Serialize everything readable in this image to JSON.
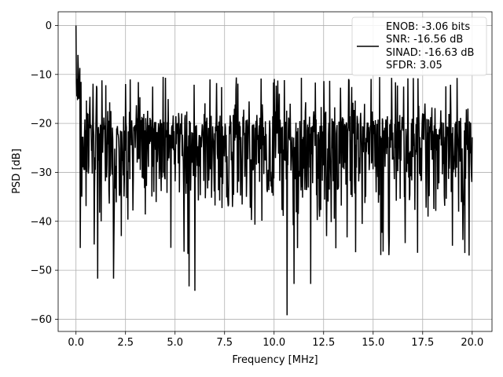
{
  "chart_data": {
    "type": "line",
    "title": "",
    "xlabel": "Frequency [MHz]",
    "ylabel": "PSD [dB]",
    "xlim": [
      -0.9,
      21.0
    ],
    "ylim": [
      -62.5,
      2.8
    ],
    "grid": true,
    "legend_position": "top-right",
    "x_ticks": [
      {
        "value": 0.0,
        "label": "0.0"
      },
      {
        "value": 2.5,
        "label": "2.5"
      },
      {
        "value": 5.0,
        "label": "5.0"
      },
      {
        "value": 7.5,
        "label": "7.5"
      },
      {
        "value": 10.0,
        "label": "10.0"
      },
      {
        "value": 12.5,
        "label": "12.5"
      },
      {
        "value": 15.0,
        "label": "15.0"
      },
      {
        "value": 17.5,
        "label": "17.5"
      },
      {
        "value": 20.0,
        "label": "20.0"
      }
    ],
    "y_ticks": [
      {
        "value": 0,
        "label": "0"
      },
      {
        "value": -10,
        "label": "−10"
      },
      {
        "value": -20,
        "label": "−20"
      },
      {
        "value": -30,
        "label": "−30"
      },
      {
        "value": -40,
        "label": "−40"
      },
      {
        "value": -50,
        "label": "−50"
      },
      {
        "value": -60,
        "label": "−60"
      }
    ],
    "series": [
      {
        "color": "#000000",
        "x_range": [
          0.0,
          20.0
        ],
        "n_points": 1024,
        "noise_floor_db": -23,
        "noise_spread_db": [
          -47,
          -13
        ],
        "peaks": [
          {
            "x": 0.0,
            "y": 0.0
          },
          {
            "x": 0.1,
            "y": -6.0
          },
          {
            "x": 1.1,
            "y": -51.7
          },
          {
            "x": 1.9,
            "y": -51.7
          },
          {
            "x": 4.4,
            "y": -10.5
          },
          {
            "x": 5.7,
            "y": -53.3
          },
          {
            "x": 6.0,
            "y": -54.2
          },
          {
            "x": 10.65,
            "y": -59.2
          },
          {
            "x": 11.0,
            "y": -52.8
          },
          {
            "x": 11.85,
            "y": -52.8
          },
          {
            "x": 15.5,
            "y": -46.2
          },
          {
            "x": 19.0,
            "y": -45.0
          },
          {
            "x": 19.85,
            "y": -47.0
          }
        ]
      }
    ],
    "legend": [
      {
        "color": "#000000",
        "lines": [
          "ENOB: -3.06 bits",
          "SNR: -16.56 dB",
          "SINAD: -16.63 dB",
          "SFDR: 3.05"
        ]
      }
    ]
  }
}
